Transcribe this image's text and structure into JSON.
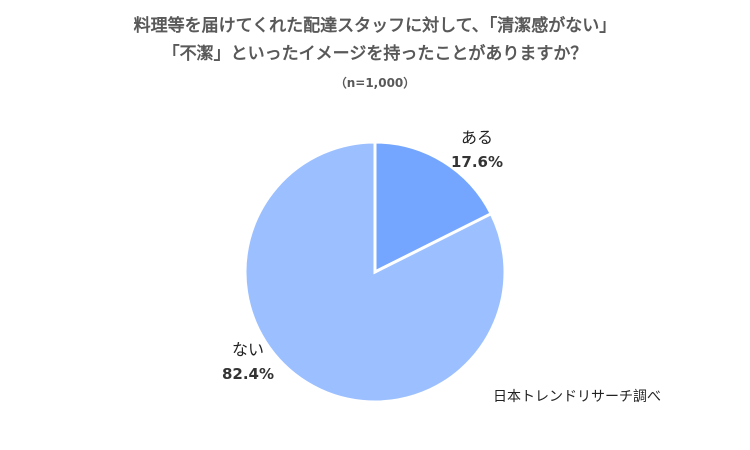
{
  "chart_data": {
    "type": "pie",
    "title_line1": "料理等を届けてくれた配達スタッフに対して、「清潔感がない」",
    "title_line2": "「不潔」といったイメージを持ったことがありますか？",
    "subtitle": "（n=1,000）",
    "slices": [
      {
        "label": "ある",
        "value": 17.6,
        "value_label": "17.6%",
        "color": "#75a6ff"
      },
      {
        "label": "ない",
        "value": 82.4,
        "value_label": "82.4%",
        "color": "#9cc0ff"
      }
    ],
    "start_angle_deg": 0,
    "direction": "clockwise",
    "slice_border_color": "#ffffff",
    "source": "日本トレンドリサーチ調べ"
  }
}
